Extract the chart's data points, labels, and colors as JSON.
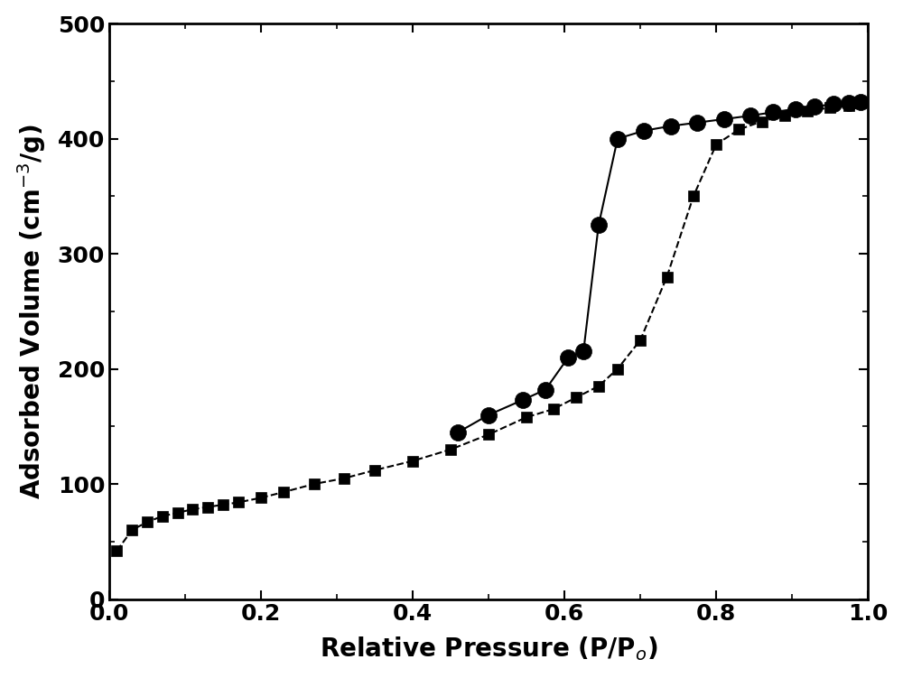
{
  "squares_x": [
    0.01,
    0.03,
    0.05,
    0.07,
    0.09,
    0.11,
    0.13,
    0.15,
    0.17,
    0.2,
    0.23,
    0.27,
    0.31,
    0.35,
    0.4,
    0.45,
    0.5,
    0.55,
    0.585,
    0.615,
    0.645,
    0.67,
    0.7,
    0.735,
    0.77,
    0.8,
    0.83,
    0.86,
    0.89,
    0.92,
    0.95,
    0.975,
    0.99
  ],
  "squares_y": [
    42,
    60,
    67,
    72,
    75,
    78,
    80,
    82,
    84,
    88,
    93,
    100,
    105,
    112,
    120,
    130,
    143,
    158,
    165,
    175,
    185,
    200,
    225,
    280,
    350,
    395,
    408,
    415,
    420,
    424,
    427,
    429,
    431
  ],
  "circles_x": [
    0.46,
    0.5,
    0.545,
    0.575,
    0.605,
    0.625,
    0.645,
    0.67,
    0.705,
    0.74,
    0.775,
    0.81,
    0.845,
    0.875,
    0.905,
    0.93,
    0.955,
    0.975,
    0.99
  ],
  "circles_y": [
    145,
    160,
    173,
    182,
    210,
    215,
    325,
    400,
    407,
    411,
    414,
    417,
    420,
    423,
    426,
    428,
    430,
    431,
    432
  ],
  "xlabel": "Relative Pressure (P/P$_o$)",
  "ylabel": "Adsorbed Volume (cm$^{-3}$/g)",
  "xlim": [
    0.0,
    1.0
  ],
  "ylim": [
    0,
    500
  ],
  "yticks": [
    0,
    100,
    200,
    300,
    400,
    500
  ],
  "xticks": [
    0.0,
    0.2,
    0.4,
    0.6,
    0.8,
    1.0
  ],
  "line_color": "#000000",
  "marker_color": "#000000",
  "background_color": "#ffffff",
  "xlabel_fontsize": 20,
  "ylabel_fontsize": 20,
  "tick_fontsize": 18,
  "sq_linewidth": 1.5,
  "circ_linewidth": 1.5,
  "marker_size_sq": 9,
  "marker_size_circ": 13
}
